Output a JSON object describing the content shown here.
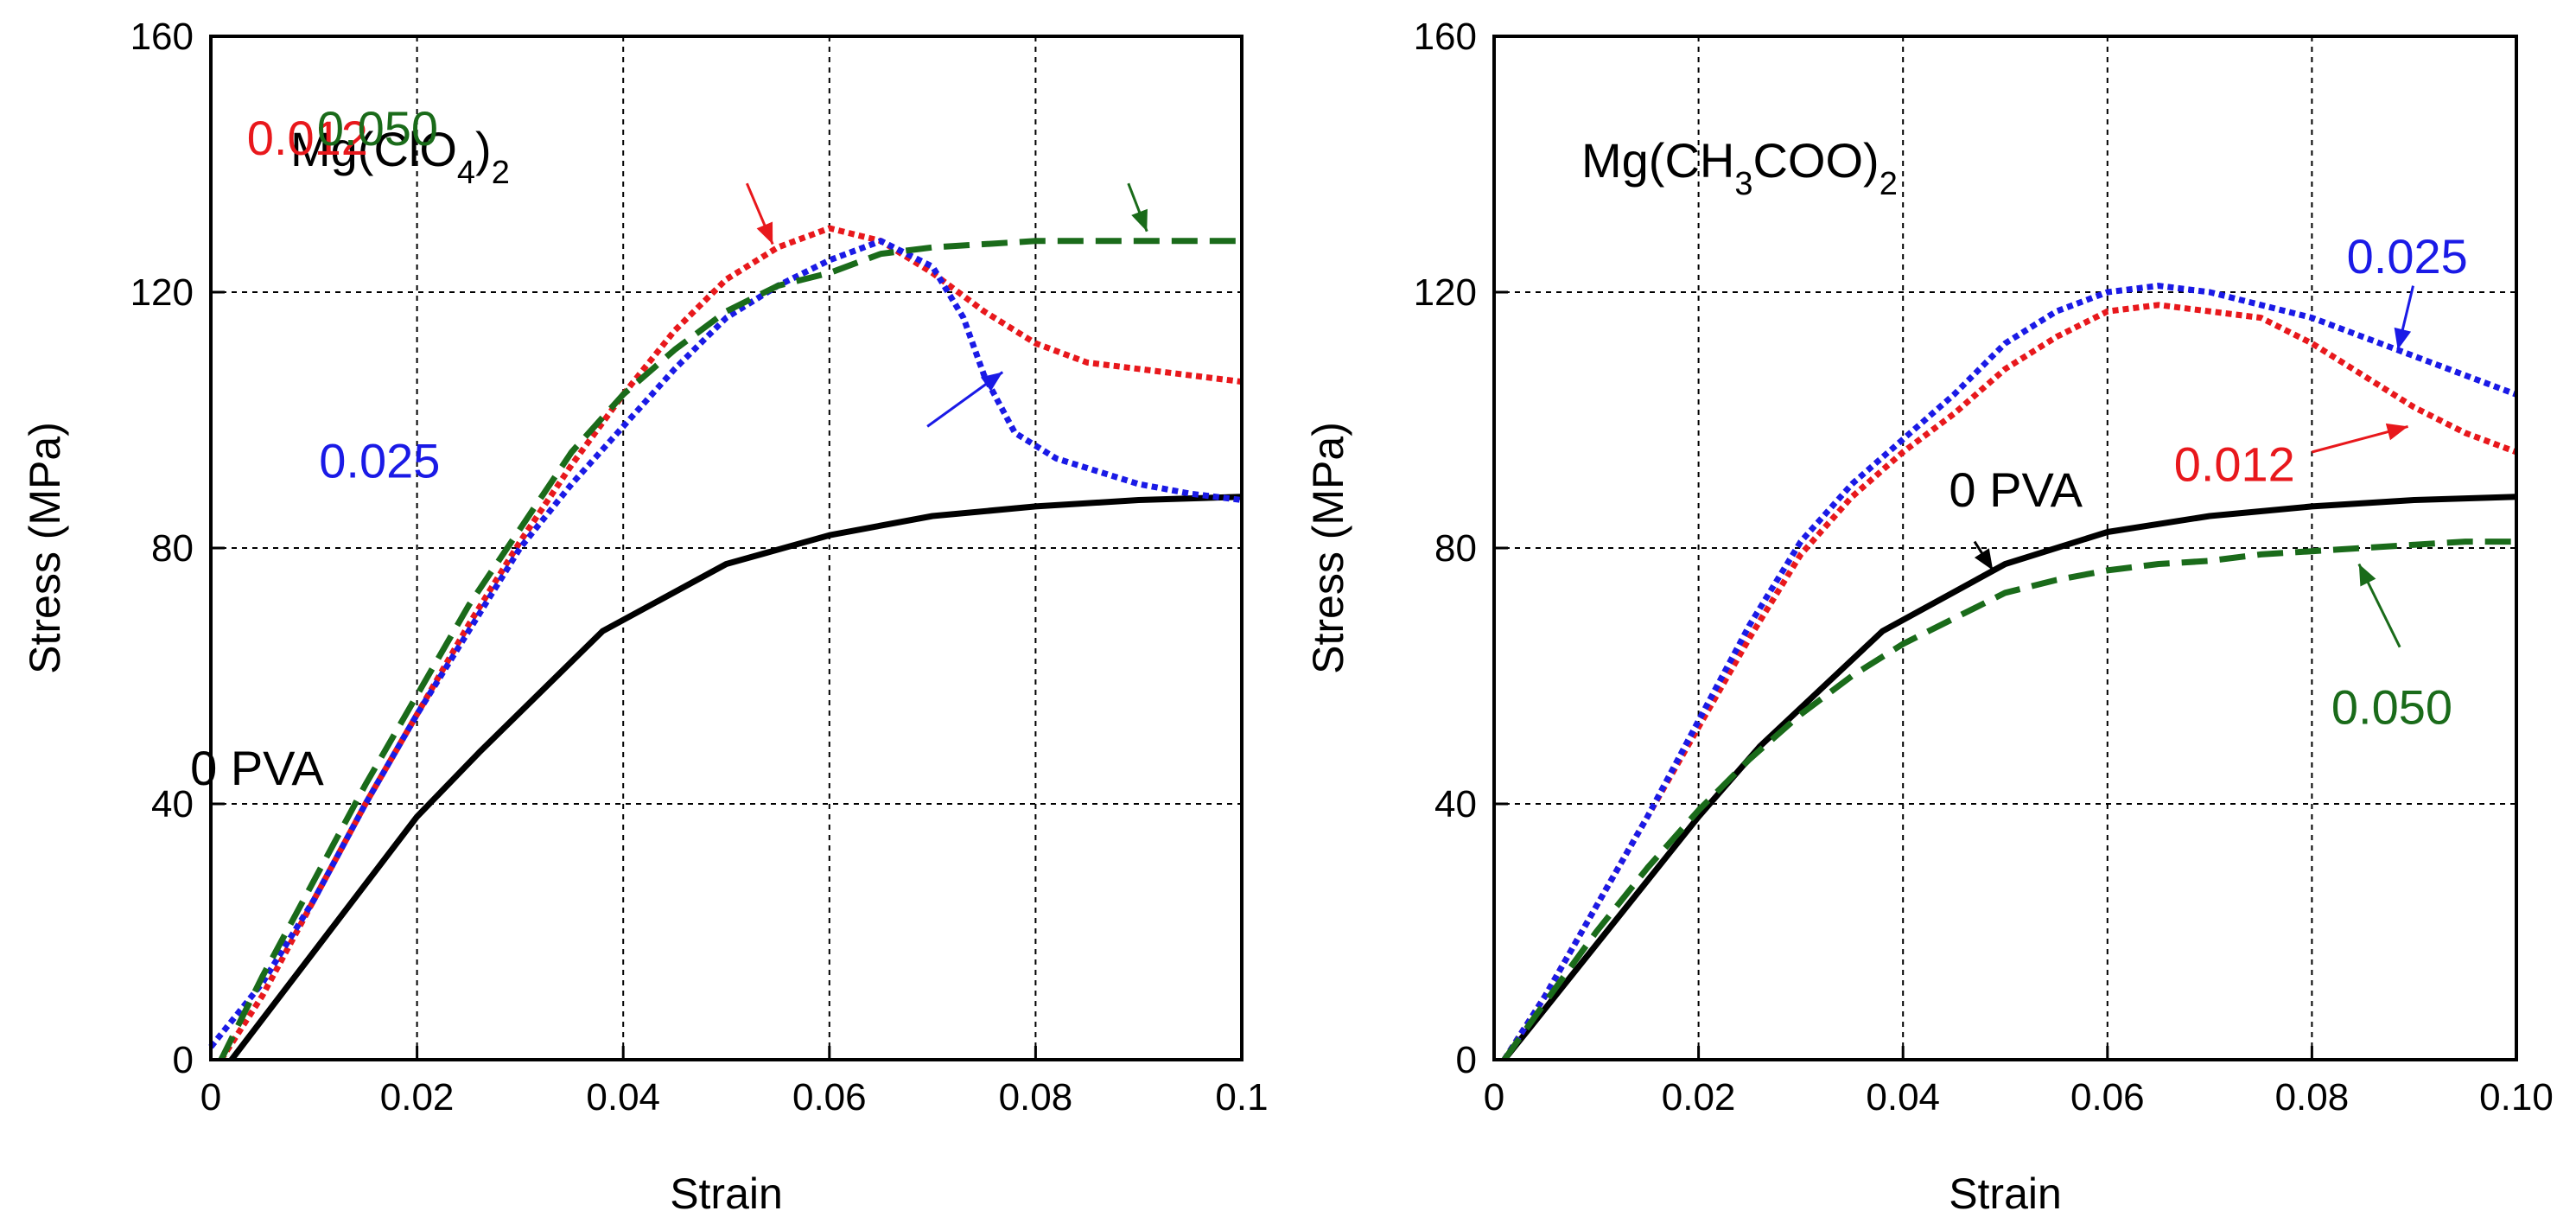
{
  "chart_data": [
    {
      "type": "line",
      "title": {
        "main": "Mg(ClO",
        "sub1": "4",
        "mid": ")",
        "sub2": "2"
      },
      "xlabel": "Strain",
      "ylabel": "Stress (MPa)",
      "xlim": [
        0,
        0.1
      ],
      "ylim": [
        0,
        160
      ],
      "xticks": [
        0,
        0.02,
        0.04,
        0.06,
        0.08,
        0.1
      ],
      "xtick_labels": [
        "0",
        "0.02",
        "0.04",
        "0.06",
        "0.08",
        "0.1"
      ],
      "yticks": [
        0,
        40,
        80,
        120,
        160
      ],
      "ytick_labels": [
        "0",
        "40",
        "80",
        "120",
        "160"
      ],
      "grid": true,
      "series": [
        {
          "name": "0 PVA",
          "color": "#000000",
          "style": "solid",
          "x": [
            0.002,
            0.02,
            0.026,
            0.038,
            0.05,
            0.06,
            0.07,
            0.08,
            0.09,
            0.1
          ],
          "y": [
            0,
            38,
            48,
            67,
            77.5,
            82,
            85,
            86.5,
            87.5,
            88
          ]
        },
        {
          "name": "0.012",
          "color": "#e8181c",
          "style": "dotted",
          "x": [
            0.001,
            0.005,
            0.01,
            0.015,
            0.02,
            0.025,
            0.03,
            0.035,
            0.04,
            0.045,
            0.05,
            0.055,
            0.06,
            0.065,
            0.07,
            0.075,
            0.08,
            0.085,
            0.09,
            0.095,
            0.1
          ],
          "y": [
            0,
            10,
            25,
            40,
            54,
            68,
            81,
            93,
            104,
            114,
            122,
            127,
            130,
            128,
            123,
            117,
            112,
            109,
            108,
            107,
            106
          ]
        },
        {
          "name": "0.025",
          "color": "#1a1ae6",
          "style": "dotted",
          "x": [
            0.0,
            0.005,
            0.01,
            0.015,
            0.02,
            0.025,
            0.03,
            0.035,
            0.04,
            0.045,
            0.05,
            0.055,
            0.06,
            0.065,
            0.07,
            0.073,
            0.075,
            0.078,
            0.082,
            0.086,
            0.09,
            0.095,
            0.1
          ],
          "y": [
            2,
            12,
            25,
            40,
            54,
            67,
            80,
            90,
            99,
            108,
            116,
            121,
            125,
            128,
            124,
            116,
            107,
            98,
            94,
            92,
            90,
            88.5,
            87.5
          ]
        },
        {
          "name": "0.050",
          "color": "#1a6b1a",
          "style": "dashed",
          "x": [
            0.001,
            0.005,
            0.01,
            0.015,
            0.02,
            0.025,
            0.03,
            0.035,
            0.04,
            0.045,
            0.05,
            0.055,
            0.06,
            0.065,
            0.07,
            0.08,
            0.09,
            0.1
          ],
          "y": [
            0,
            13,
            28,
            43,
            57,
            71,
            83,
            95,
            104,
            111,
            117,
            121,
            123,
            126,
            127,
            128,
            128,
            128
          ]
        }
      ],
      "annotations": [
        {
          "text": "0.012",
          "color": "#e8181c",
          "text_x": 0.0035,
          "text_y": 141.5,
          "from": [
            0.052,
            137
          ],
          "to": [
            0.0545,
            127.5
          ]
        },
        {
          "text": "0.050",
          "color": "#1a6b1a",
          "text_x": 0.0103,
          "text_y": 143,
          "from": [
            0.089,
            137
          ],
          "to": [
            0.0908,
            129.5
          ]
        },
        {
          "text": "0.025",
          "color": "#1a1ae6",
          "text_x": 0.0105,
          "text_y": 91,
          "from": [
            0.0695,
            99
          ],
          "to": [
            0.0768,
            107.5
          ]
        },
        {
          "text": "0  PVA",
          "color": "#000000",
          "text_x": -0.002,
          "text_y": 43,
          "from": null,
          "to": null
        }
      ]
    },
    {
      "type": "line",
      "title": {
        "main": "Mg(CH",
        "sub1": "3",
        "mid": "COO)",
        "sub2": "2"
      },
      "xlabel": "Strain",
      "ylabel": "Stress (MPa)",
      "xlim": [
        0,
        0.1
      ],
      "ylim": [
        0,
        160
      ],
      "xticks": [
        0,
        0.02,
        0.04,
        0.06,
        0.08,
        0.1
      ],
      "xtick_labels": [
        "0",
        "0.02",
        "0.04",
        "0.06",
        "0.08",
        "0.10"
      ],
      "yticks": [
        0,
        40,
        80,
        120,
        160
      ],
      "ytick_labels": [
        "0",
        "40",
        "80",
        "120",
        "160"
      ],
      "grid": true,
      "series": [
        {
          "name": "0 PVA",
          "color": "#000000",
          "style": "solid",
          "x": [
            0.001,
            0.02,
            0.026,
            0.038,
            0.05,
            0.06,
            0.07,
            0.08,
            0.09,
            0.1
          ],
          "y": [
            0,
            38,
            49,
            67,
            77.5,
            82.5,
            85,
            86.5,
            87.5,
            88
          ]
        },
        {
          "name": "0.012",
          "color": "#e8181c",
          "style": "dotted",
          "x": [
            0.001,
            0.005,
            0.01,
            0.015,
            0.02,
            0.025,
            0.03,
            0.035,
            0.04,
            0.045,
            0.05,
            0.055,
            0.06,
            0.065,
            0.07,
            0.075,
            0.08,
            0.085,
            0.09,
            0.095,
            0.1
          ],
          "y": [
            0,
            10,
            24,
            38,
            52,
            66,
            79,
            88,
            95,
            101,
            108,
            113,
            117,
            118,
            117,
            116,
            112,
            107,
            102,
            98,
            95
          ]
        },
        {
          "name": "0.025",
          "color": "#1a1ae6",
          "style": "dotted",
          "x": [
            0.001,
            0.005,
            0.01,
            0.015,
            0.02,
            0.025,
            0.03,
            0.035,
            0.04,
            0.045,
            0.05,
            0.055,
            0.06,
            0.065,
            0.07,
            0.075,
            0.08,
            0.085,
            0.09,
            0.095,
            0.1
          ],
          "y": [
            0,
            10,
            24,
            38,
            53,
            68,
            81,
            90,
            97,
            104,
            112,
            117,
            120,
            121,
            120,
            118,
            116,
            113,
            110,
            107,
            104
          ]
        },
        {
          "name": "0.050",
          "color": "#1a6b1a",
          "style": "dashed",
          "x": [
            0.001,
            0.005,
            0.01,
            0.015,
            0.02,
            0.025,
            0.03,
            0.035,
            0.04,
            0.045,
            0.05,
            0.055,
            0.06,
            0.065,
            0.07,
            0.075,
            0.08,
            0.085,
            0.09,
            0.095,
            0.1
          ],
          "y": [
            0,
            9,
            20,
            30,
            39,
            47,
            54,
            60,
            65,
            69,
            73,
            75,
            76.5,
            77.5,
            78,
            79,
            79.5,
            80,
            80.5,
            81,
            81
          ]
        }
      ],
      "annotations": [
        {
          "text": "0.025",
          "color": "#1a1ae6",
          "text_x": 0.0834,
          "text_y": 123,
          "from": [
            0.0899,
            121
          ],
          "to": [
            0.0884,
            111
          ]
        },
        {
          "text": "0.012",
          "color": "#e8181c",
          "text_x": 0.0665,
          "text_y": 90.5,
          "from": [
            0.08,
            95
          ],
          "to": [
            0.0894,
            99
          ]
        },
        {
          "text": "0  PVA",
          "color": "#000000",
          "text_x": 0.0445,
          "text_y": 86.5,
          "from": [
            0.047,
            81
          ],
          "to": [
            0.0488,
            76.5
          ]
        },
        {
          "text": "0.050",
          "color": "#1a6b1a",
          "text_x": 0.0819,
          "text_y": 52.5,
          "from": [
            0.0886,
            64.5
          ],
          "to": [
            0.0846,
            77.5
          ]
        }
      ]
    }
  ]
}
